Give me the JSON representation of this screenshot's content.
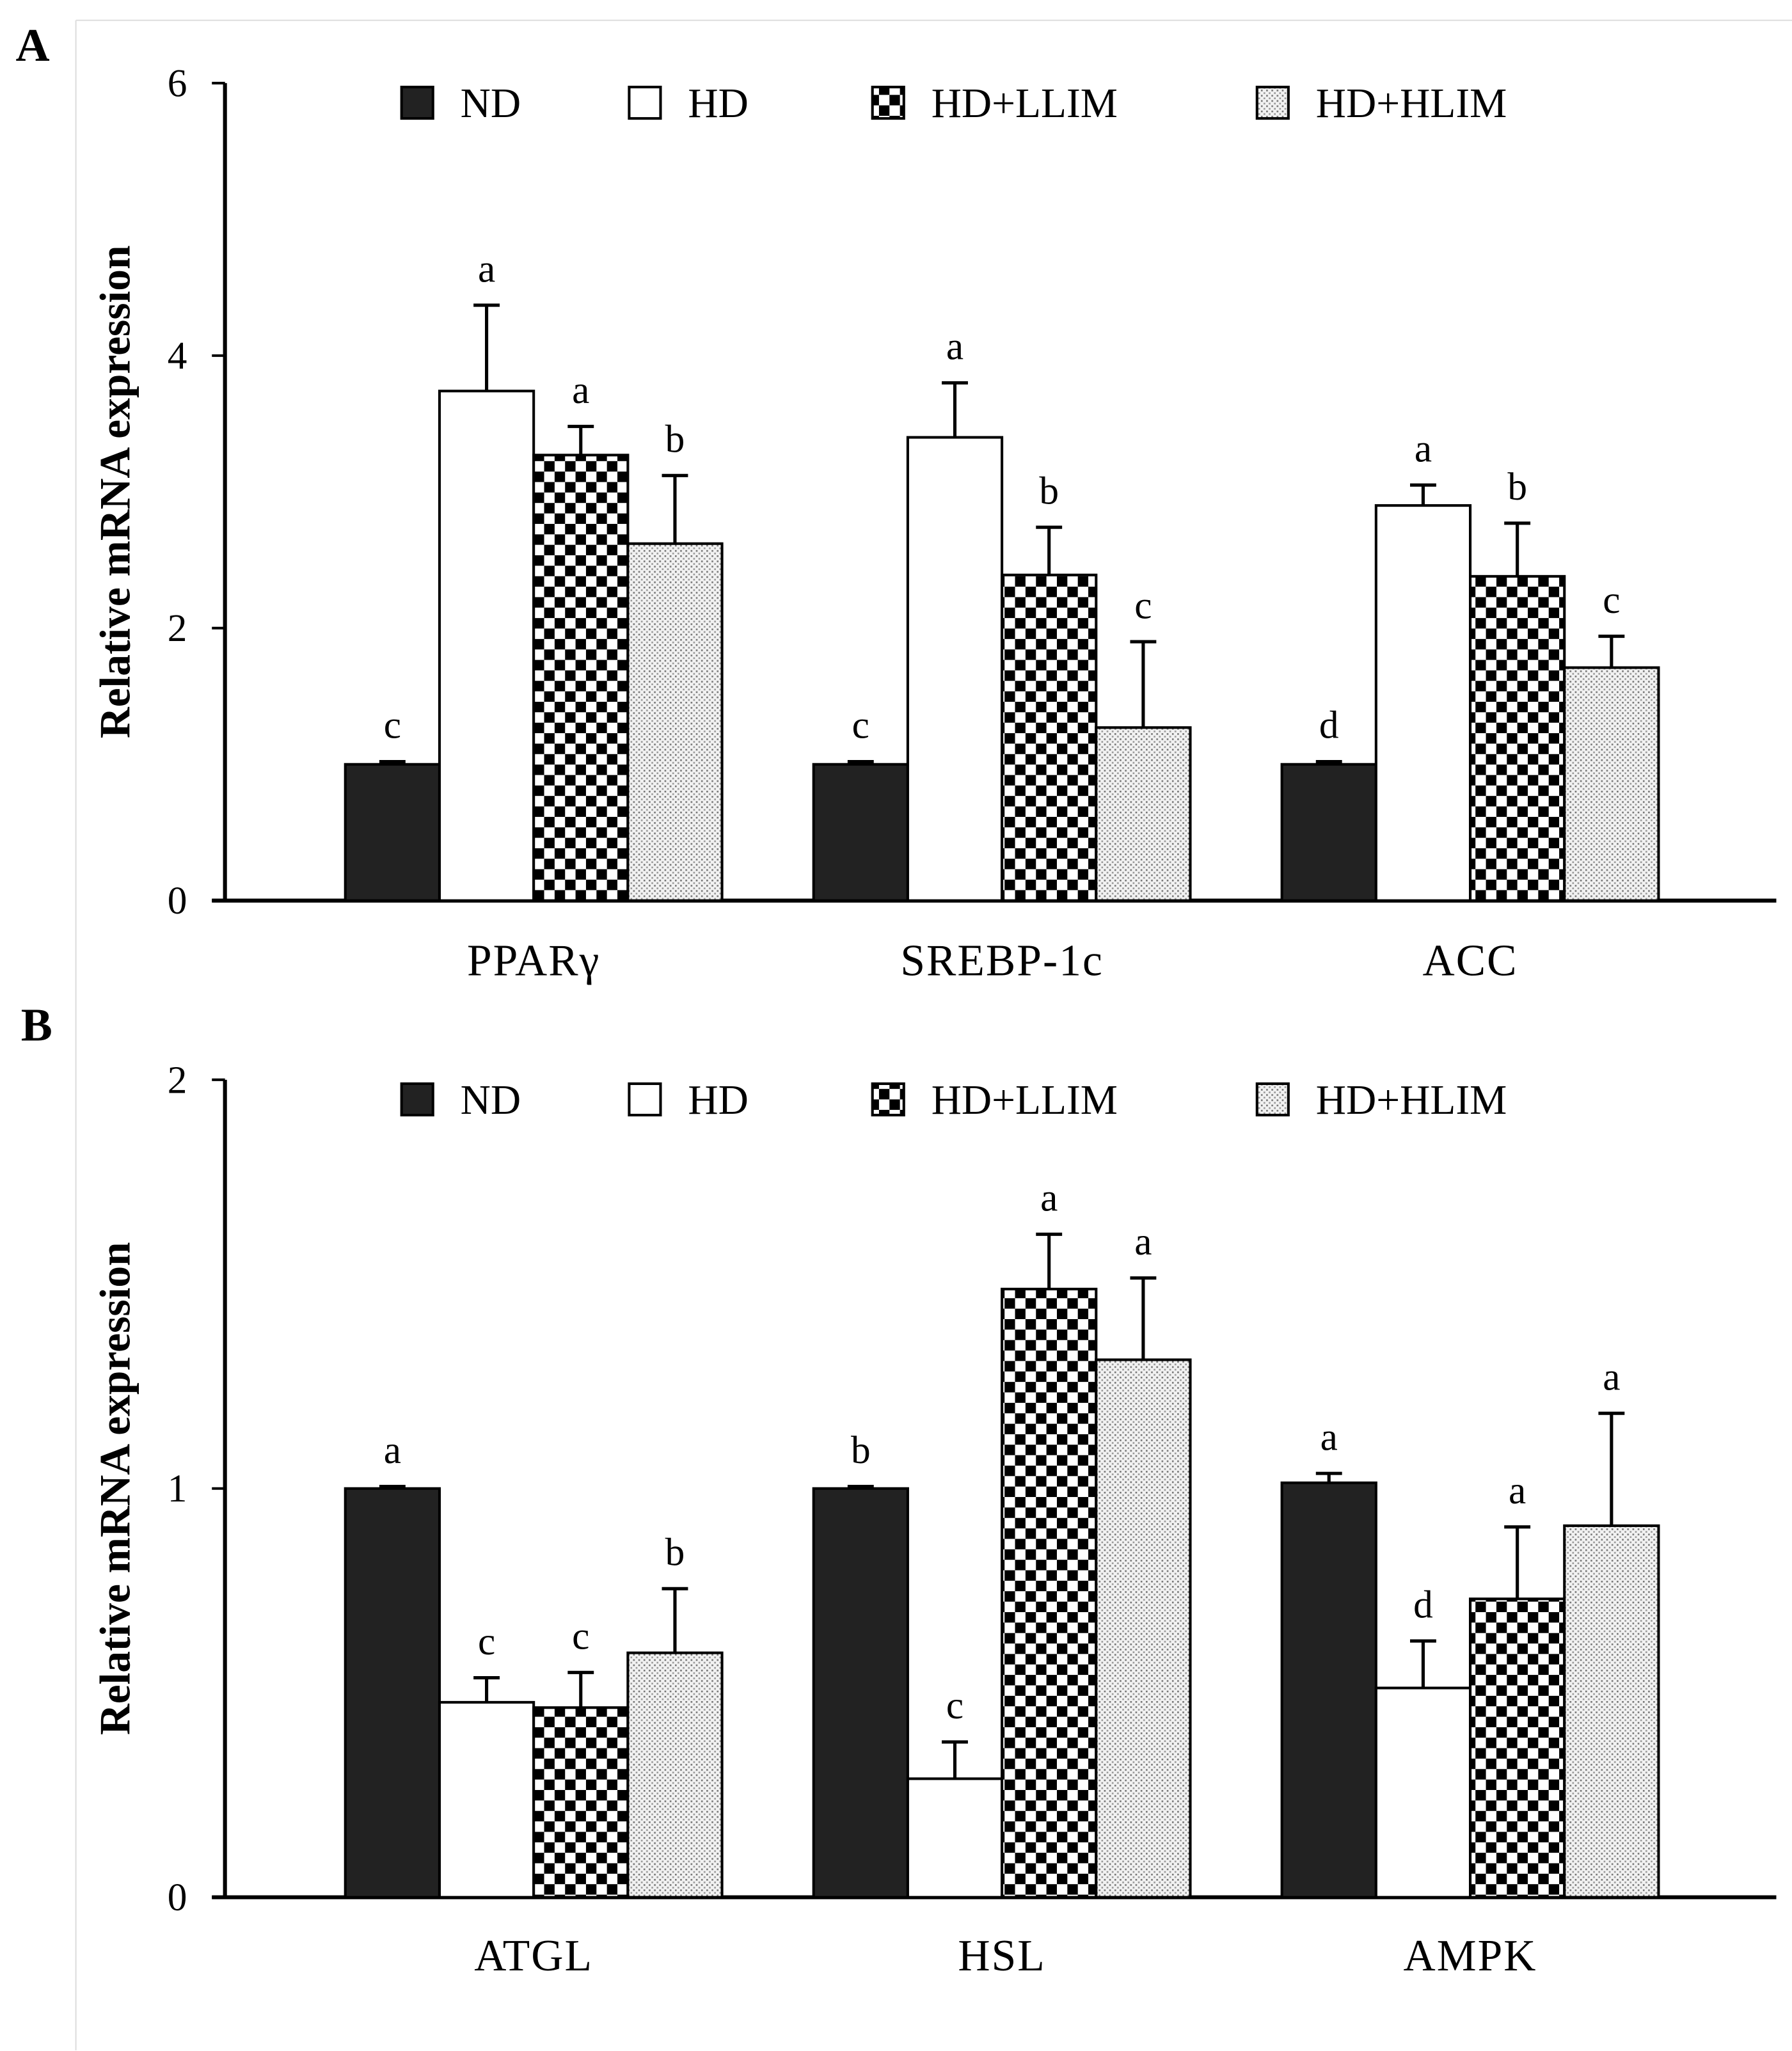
{
  "legend": [
    "ND",
    "HD",
    "HD+LLIM",
    "HD+HLIM"
  ],
  "colors": {
    "ND": "#222222",
    "HD": "#ffffff",
    "axis": "#000000"
  },
  "chart_data": [
    {
      "type": "bar",
      "panel": "A",
      "ylabel": "Relative mRNA expression",
      "ylim": [
        0,
        6
      ],
      "yticks": [
        0,
        2,
        4,
        6
      ],
      "categories": [
        "PPARγ",
        "SREBP-1c",
        "ACC"
      ],
      "legend_position": "top",
      "series": [
        {
          "name": "ND",
          "values": [
            1.0,
            1.0,
            1.0
          ],
          "errors": [
            0.02,
            0.02,
            0.02
          ],
          "letters": [
            "c",
            "c",
            "d"
          ]
        },
        {
          "name": "HD",
          "values": [
            3.74,
            3.4,
            2.9
          ],
          "errors": [
            0.63,
            0.4,
            0.15
          ],
          "letters": [
            "a",
            "a",
            "a"
          ]
        },
        {
          "name": "HD+LLIM",
          "values": [
            3.27,
            2.39,
            2.38
          ],
          "errors": [
            0.21,
            0.35,
            0.39
          ],
          "letters": [
            "a",
            "b",
            "b"
          ]
        },
        {
          "name": "HD+HLIM",
          "values": [
            2.62,
            1.27,
            1.71
          ],
          "errors": [
            0.5,
            0.63,
            0.23
          ],
          "letters": [
            "b",
            "c",
            "c"
          ]
        }
      ]
    },
    {
      "type": "bar",
      "panel": "B",
      "ylabel": "Relative mRNA expression",
      "ylim": [
        0,
        2
      ],
      "yticks": [
        0,
        1,
        2
      ],
      "categories": [
        "ATGL",
        "HSL",
        "AMPK"
      ],
      "legend_position": "top",
      "series": [
        {
          "name": "ND",
          "values": [
            1.0,
            1.0,
            1.014
          ],
          "errors": [
            0.005,
            0.005,
            0.023
          ],
          "letters": [
            "a",
            "b",
            "a"
          ]
        },
        {
          "name": "HD",
          "values": [
            0.477,
            0.29,
            0.512
          ],
          "errors": [
            0.06,
            0.09,
            0.115
          ],
          "letters": [
            "c",
            "c",
            "d"
          ]
        },
        {
          "name": "HD+LLIM",
          "values": [
            0.464,
            1.488,
            0.73
          ],
          "errors": [
            0.086,
            0.134,
            0.176
          ],
          "letters": [
            "c",
            "a",
            "a"
          ]
        },
        {
          "name": "HD+HLIM",
          "values": [
            0.598,
            1.315,
            0.909
          ],
          "errors": [
            0.157,
            0.2,
            0.275
          ],
          "letters": [
            "b",
            "a",
            "a"
          ]
        }
      ]
    }
  ]
}
